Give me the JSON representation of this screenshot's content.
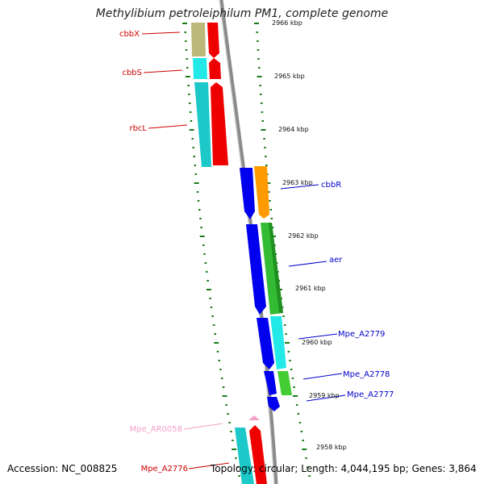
{
  "title": "Methylibium petroleiphilum PM1, complete genome",
  "footer": {
    "accession": "Accession: NC_008825",
    "summary": "Topology: circular; Length: 4,044,195 bp; Genes: 3,864"
  },
  "colors": {
    "backbone": "#8a8a8a",
    "tick": "#1a7a1a",
    "label_red": "#cc0000",
    "label_blue": "#0000cc",
    "label_pink": "#f4a0c8"
  },
  "kbp_ticks": [
    "2966 kbp",
    "2965 kbp",
    "2964 kbp",
    "2963 kbp",
    "2962 kbp",
    "2961 kbp",
    "2960 kbp",
    "2959 kbp",
    "2958 kbp"
  ],
  "genes": [
    {
      "name": "cbbX",
      "color": "#bcb87a",
      "strand": "minus"
    },
    {
      "name": "cbbS",
      "color": "#22e8e8",
      "strand": "minus"
    },
    {
      "name": "rbcL",
      "color": "#1cc8c8",
      "strand": "minus"
    },
    {
      "name": "cbbR",
      "color": "#ff9a00",
      "strand": "plus"
    },
    {
      "name": "aer",
      "color": "#33bb33",
      "strand": "plus"
    },
    {
      "name": "Mpe_A2779",
      "color": "#22e8e8",
      "strand": "plus"
    },
    {
      "name": "Mpe_A2778",
      "color": "#44cc33",
      "strand": "plus"
    },
    {
      "name": "Mpe_A2777",
      "color": "#0000ee",
      "strand": "plus"
    },
    {
      "name": "Mpe_AR0058",
      "color": "#f4a0c8",
      "strand": "minus"
    },
    {
      "name": "Mpe_A2776",
      "color": "#1cc8c8",
      "strand": "minus"
    }
  ]
}
